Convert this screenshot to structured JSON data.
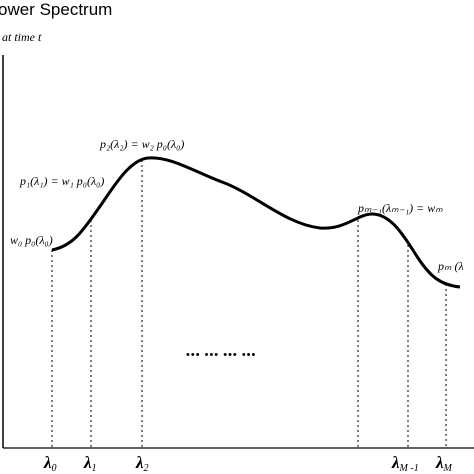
{
  "diagram": {
    "title": "ower Spectrum",
    "subtitle": "at time t",
    "ellipsis": "•••  •••  •••  •••",
    "axis_ticks": [
      {
        "id": "lambda-0",
        "base": "λ",
        "sub": "0"
      },
      {
        "id": "lambda-1",
        "base": "λ",
        "sub": "1"
      },
      {
        "id": "lambda-2",
        "base": "λ",
        "sub": "2"
      },
      {
        "id": "lambda-m-1",
        "base": "λ",
        "sub": "M -1"
      },
      {
        "id": "lambda-m",
        "base": "λ",
        "sub": "M"
      }
    ],
    "annotations": [
      {
        "id": "label-p2",
        "text": "p₂(λ₂) = w₂ p₀(λ₀)"
      },
      {
        "id": "label-p1",
        "text": "p₁(λ₁) = w₁ p₀(λ₀)"
      },
      {
        "id": "label-w0",
        "text": "w₀ p₀(λ₀)"
      },
      {
        "id": "label-pm-1",
        "text": "pₘ₋₁(λₘ₋₁) = wₘ"
      },
      {
        "id": "label-pm",
        "text": "pₘ (λ"
      }
    ]
  }
}
